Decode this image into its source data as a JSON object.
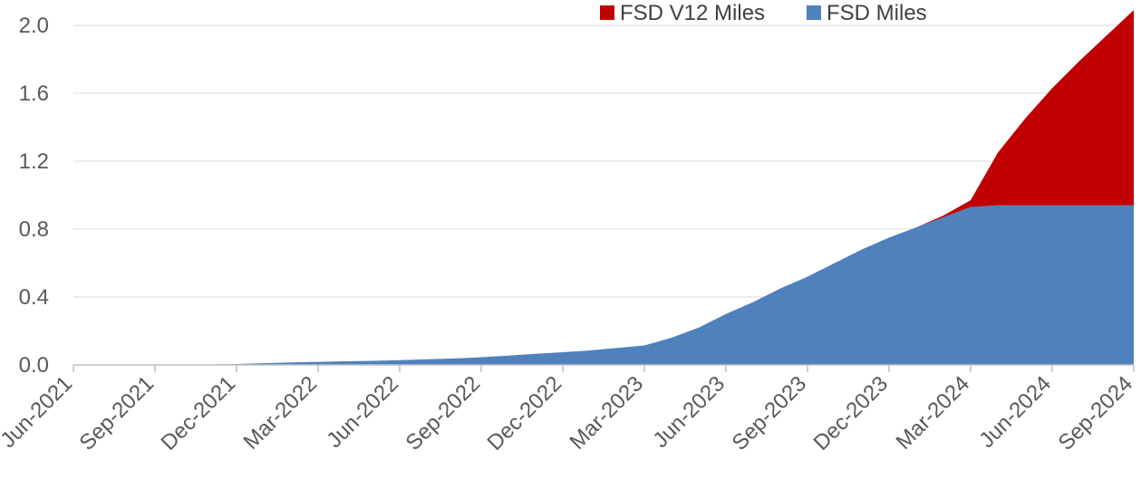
{
  "chart_data": {
    "type": "area",
    "stacked": true,
    "title": "",
    "xlabel": "",
    "ylabel": "",
    "ylim": [
      0,
      2.0
    ],
    "y_ticks": [
      "0.0",
      "0.4",
      "0.8",
      "1.2",
      "1.6",
      "2.0"
    ],
    "x_ticks": [
      "Jun-2021",
      "Sep-2021",
      "Dec-2021",
      "Mar-2022",
      "Jun-2022",
      "Sep-2022",
      "Dec-2022",
      "Mar-2023",
      "Jun-2023",
      "Sep-2023",
      "Dec-2023",
      "Mar-2024",
      "Jun-2024",
      "Sep-2024"
    ],
    "x": [
      "2021-06",
      "2021-07",
      "2021-08",
      "2021-09",
      "2021-10",
      "2021-11",
      "2021-12",
      "2022-01",
      "2022-02",
      "2022-03",
      "2022-04",
      "2022-05",
      "2022-06",
      "2022-07",
      "2022-08",
      "2022-09",
      "2022-10",
      "2022-11",
      "2022-12",
      "2023-01",
      "2023-02",
      "2023-03",
      "2023-04",
      "2023-05",
      "2023-06",
      "2023-07",
      "2023-08",
      "2023-09",
      "2023-10",
      "2023-11",
      "2023-12",
      "2024-01",
      "2024-02",
      "2024-03",
      "2024-04",
      "2024-05",
      "2024-06",
      "2024-07",
      "2024-08",
      "2024-09"
    ],
    "grid": "horizontal",
    "legend_position": "top-right",
    "series": [
      {
        "name": "FSD Miles",
        "color": "#4f81bd",
        "values": [
          0,
          0,
          0,
          0,
          0,
          0.002,
          0.005,
          0.01,
          0.015,
          0.018,
          0.021,
          0.024,
          0.028,
          0.033,
          0.038,
          0.045,
          0.055,
          0.065,
          0.075,
          0.085,
          0.1,
          0.115,
          0.16,
          0.22,
          0.3,
          0.37,
          0.45,
          0.52,
          0.6,
          0.68,
          0.75,
          0.81,
          0.87,
          0.93,
          0.94,
          0.94,
          0.94,
          0.94,
          0.94,
          0.94
        ]
      },
      {
        "name": "FSD V12 Miles",
        "color": "#c00000",
        "values": [
          0,
          0,
          0,
          0,
          0,
          0,
          0,
          0,
          0,
          0,
          0,
          0,
          0,
          0,
          0,
          0,
          0,
          0,
          0,
          0,
          0,
          0,
          0,
          0,
          0,
          0,
          0,
          0,
          0,
          0,
          0,
          0,
          0.01,
          0.04,
          0.31,
          0.51,
          0.69,
          0.85,
          1.0,
          1.15
        ]
      }
    ]
  }
}
